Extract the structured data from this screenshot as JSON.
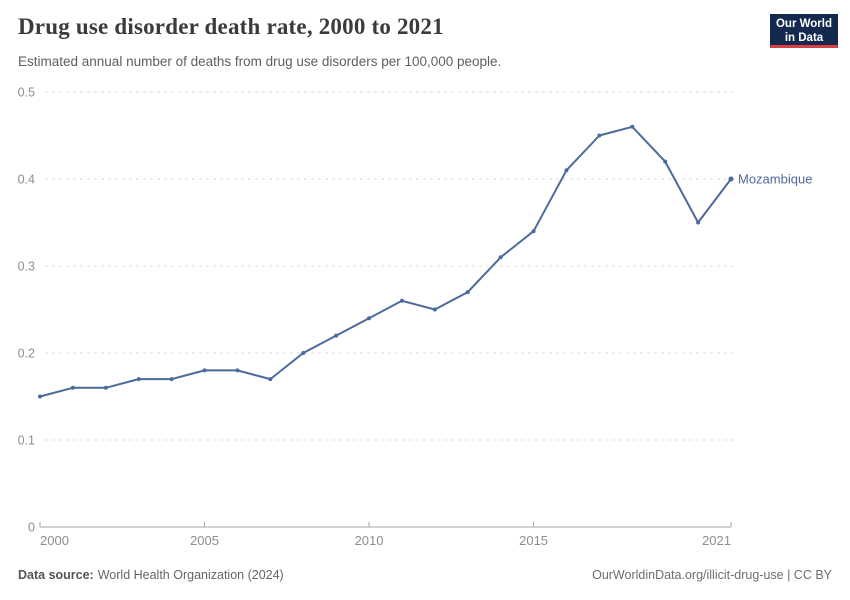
{
  "header": {
    "title": "Drug use disorder death rate, 2000 to 2021",
    "subtitle": "Estimated annual number of deaths from drug use disorders per 100,000 people."
  },
  "logo": {
    "line1": "Our World",
    "line2": "in Data"
  },
  "chart_data": {
    "type": "line",
    "title": "Drug use disorder death rate, 2000 to 2021",
    "x": [
      2000,
      2001,
      2002,
      2003,
      2004,
      2005,
      2006,
      2007,
      2008,
      2009,
      2010,
      2011,
      2012,
      2013,
      2014,
      2015,
      2016,
      2017,
      2018,
      2019,
      2020,
      2021
    ],
    "series": [
      {
        "name": "Mozambique",
        "color": "#4C6A9C",
        "values": [
          0.15,
          0.16,
          0.16,
          0.17,
          0.17,
          0.18,
          0.18,
          0.17,
          0.2,
          0.22,
          0.24,
          0.26,
          0.25,
          0.27,
          0.31,
          0.34,
          0.41,
          0.45,
          0.46,
          0.42,
          0.35,
          0.4
        ]
      }
    ],
    "xlabel": "",
    "ylabel": "",
    "ylim": [
      0,
      0.5
    ],
    "yticks": [
      0,
      0.1,
      0.2,
      0.3,
      0.4,
      0.5
    ],
    "xticks": [
      2000,
      2005,
      2010,
      2015,
      2021
    ],
    "grid": "horizontal-dashed",
    "legend": "inline-end-label"
  },
  "footer": {
    "source_label": "Data source:",
    "source_value": "World Health Organization (2024)",
    "credit": "OurWorldinData.org/illicit-drug-use | CC BY"
  },
  "colors": {
    "line": "#4C6A9C",
    "grid": "#dcdcdc",
    "axis": "#a3a3a3",
    "axis_text": "#8e8e8e",
    "logo_bg": "#13294e",
    "logo_accent": "#dc3e45"
  }
}
